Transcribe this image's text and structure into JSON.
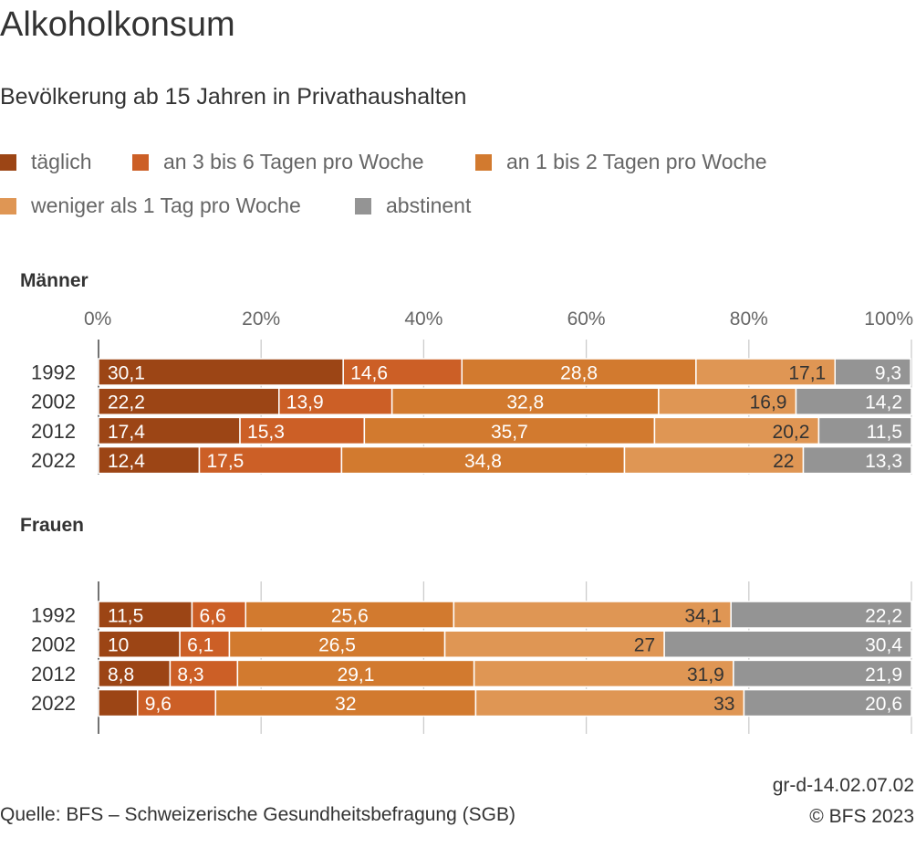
{
  "title": "Alkoholkonsum",
  "subtitle": "Bevölkerung ab 15 Jahren in Privathaushalten",
  "source": "Quelle: BFS – Schweizerische Gesundheitsbefragung (SGB)",
  "graphic_id": "gr-d-14.02.07.02",
  "copyright": "© BFS 2023",
  "chart_data": {
    "type": "bar",
    "orientation": "horizontal",
    "stacked": true,
    "xlim": [
      0,
      100
    ],
    "x_ticks": [
      "0%",
      "20%",
      "40%",
      "60%",
      "80%",
      "100%"
    ],
    "grid": true,
    "legend_position": "top",
    "series": [
      {
        "name": "täglich",
        "color": "#9c4515"
      },
      {
        "name": "an 3 bis 6 Tagen pro Woche",
        "color": "#cc5f26"
      },
      {
        "name": "an 1 bis 2 Tagen pro Woche",
        "color": "#d27a2f"
      },
      {
        "name": "weniger als 1 Tag pro Woche",
        "color": "#df9654"
      },
      {
        "name": "abstinent",
        "color": "#949494"
      }
    ],
    "panels": [
      {
        "name": "Männer",
        "categories": [
          "1992",
          "2002",
          "2012",
          "2022"
        ],
        "values": [
          [
            30.1,
            14.6,
            28.8,
            17.1,
            9.3
          ],
          [
            22.2,
            13.9,
            32.8,
            16.9,
            14.2
          ],
          [
            17.4,
            15.3,
            35.7,
            20.2,
            11.5
          ],
          [
            12.4,
            17.5,
            34.8,
            22,
            13.3
          ]
        ],
        "labels": [
          [
            "30,1",
            "14,6",
            "28,8",
            "17,1",
            "9,3"
          ],
          [
            "22,2",
            "13,9",
            "32,8",
            "16,9",
            "14,2"
          ],
          [
            "17,4",
            "15,3",
            "35,7",
            "20,2",
            "11,5"
          ],
          [
            "12,4",
            "17,5",
            "34,8",
            "22",
            "13,3"
          ]
        ]
      },
      {
        "name": "Frauen",
        "categories": [
          "1992",
          "2002",
          "2012",
          "2022"
        ],
        "values": [
          [
            11.5,
            6.6,
            25.6,
            34.1,
            22.2
          ],
          [
            10,
            6.1,
            26.5,
            27,
            30.4
          ],
          [
            8.8,
            8.3,
            29.1,
            31.9,
            21.9
          ],
          [
            4.8,
            9.6,
            32,
            33,
            20.6
          ]
        ],
        "labels": [
          [
            "11,5",
            "6,6",
            "25,6",
            "34,1",
            "22,2"
          ],
          [
            "10",
            "6,1",
            "26,5",
            "27",
            "30,4"
          ],
          [
            "8,8",
            "8,3",
            "29,1",
            "31,9",
            "21,9"
          ],
          [
            "",
            "9,6",
            "32",
            "33",
            "20,6"
          ]
        ]
      }
    ]
  }
}
